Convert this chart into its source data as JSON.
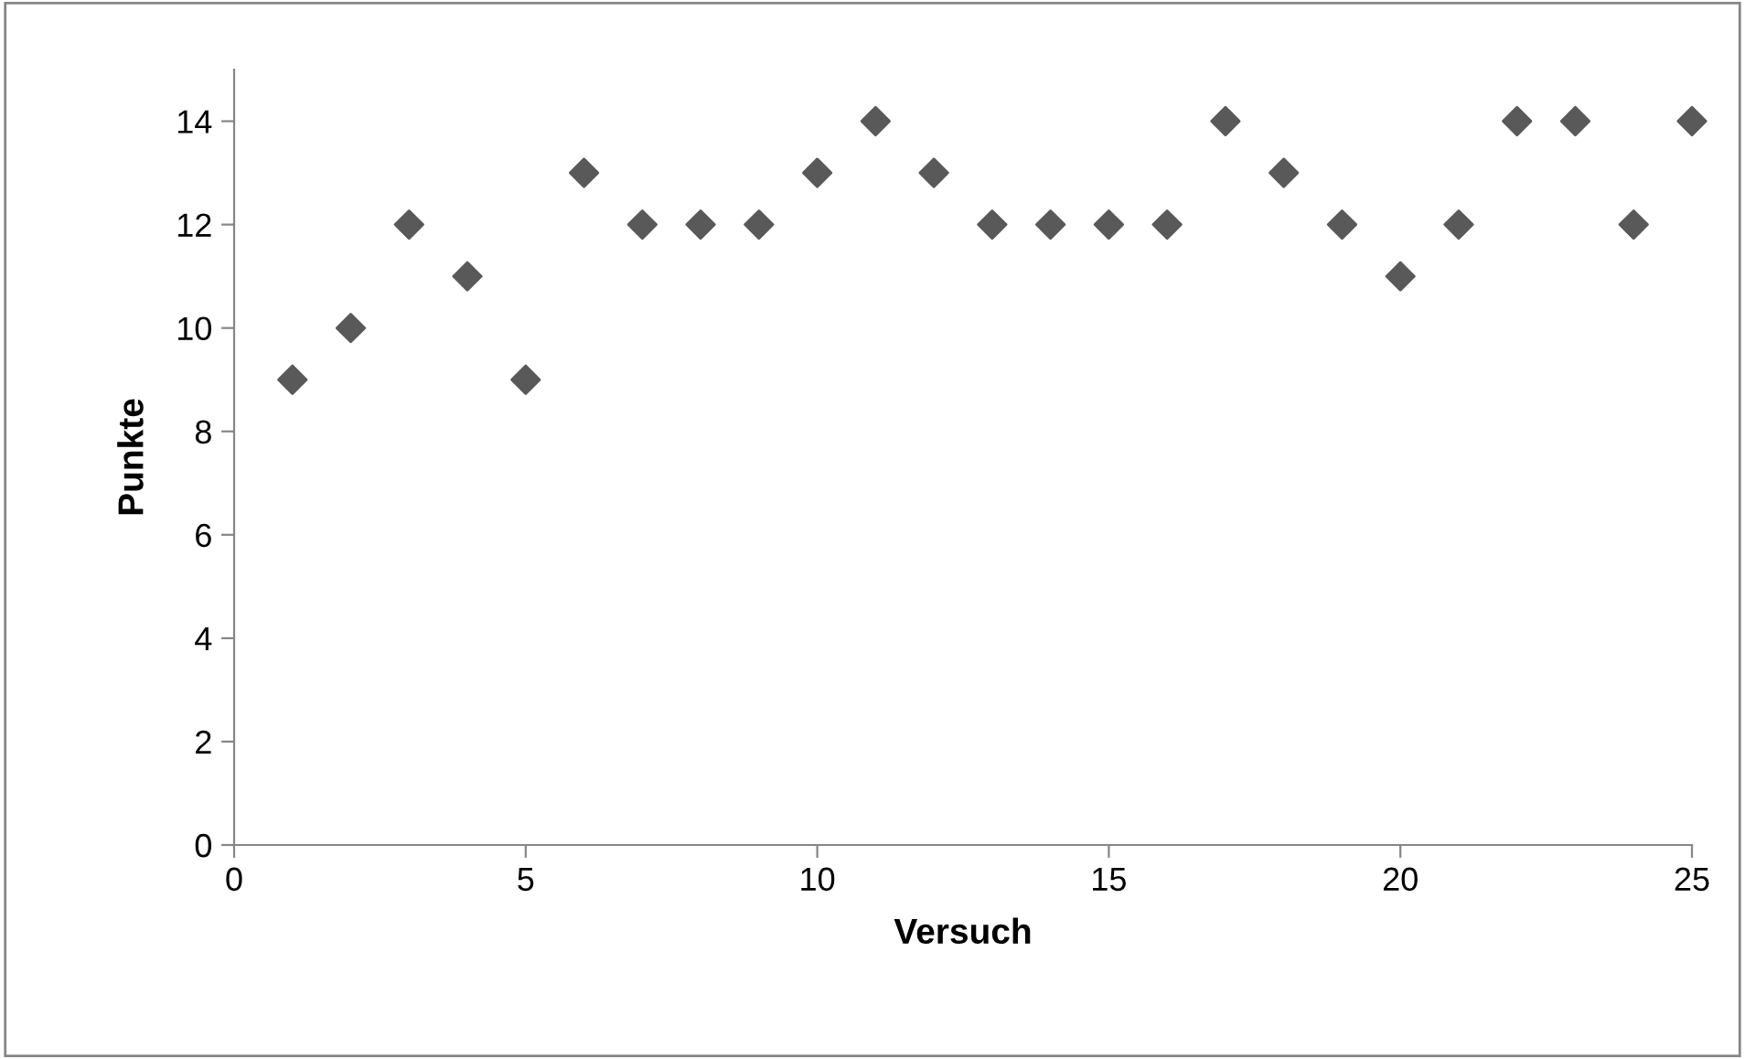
{
  "chart_data": {
    "type": "scatter",
    "xlabel": "Versuch",
    "ylabel": "Punkte",
    "x": [
      1,
      2,
      3,
      4,
      5,
      6,
      7,
      8,
      9,
      10,
      11,
      12,
      13,
      14,
      15,
      16,
      17,
      18,
      19,
      20,
      21,
      22,
      23,
      24,
      25
    ],
    "values": [
      9,
      10,
      12,
      11,
      9,
      13,
      12,
      12,
      12,
      13,
      14,
      13,
      12,
      12,
      12,
      12,
      14,
      13,
      12,
      11,
      12,
      14,
      14,
      12,
      14
    ],
    "color": "#595959",
    "marker": "diamond",
    "xlim": [
      0,
      25
    ],
    "xticks": [
      0,
      5,
      10,
      15,
      20,
      25
    ],
    "ylim": [
      0,
      15
    ],
    "yticks": [
      0,
      2,
      4,
      6,
      8,
      10,
      12,
      14
    ],
    "grid": false,
    "legend": false
  }
}
